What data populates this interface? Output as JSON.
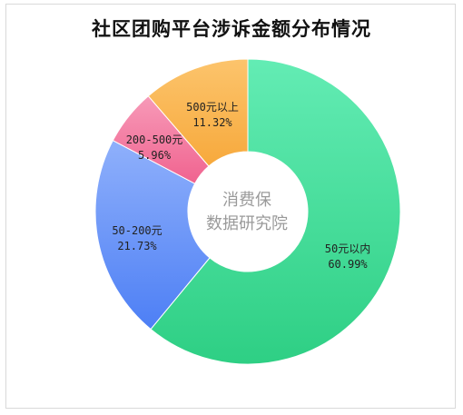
{
  "chart_data": {
    "type": "pie",
    "title": "社区团购平台涉诉金额分布情况",
    "center_text": [
      "消费保",
      "数据研究院"
    ],
    "slices": [
      {
        "label": "50元以内",
        "value": 60.99,
        "value_text": "60.99%",
        "color": "#2ecf84",
        "color_light": "#63ecb4"
      },
      {
        "label": "50-200元",
        "value": 21.73,
        "value_text": "21.73%",
        "color": "#4d7ff5",
        "color_light": "#8fb0fb"
      },
      {
        "label": "200-500元",
        "value": 5.96,
        "value_text": "5.96%",
        "color": "#f0638f",
        "color_light": "#f79ab8"
      },
      {
        "label": "500元以上",
        "value": 11.32,
        "value_text": "11.32%",
        "color": "#f7a93c",
        "color_light": "#fcc46c"
      }
    ]
  }
}
